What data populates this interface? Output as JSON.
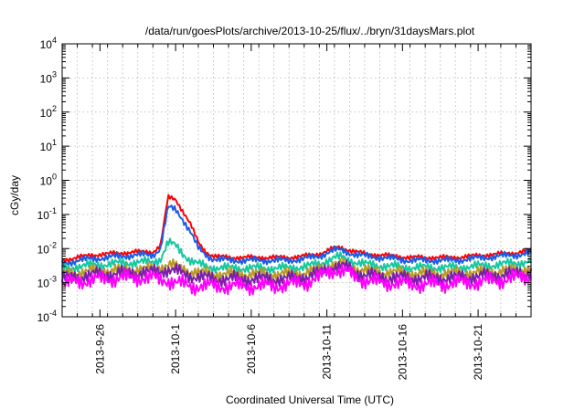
{
  "chart_data": {
    "type": "line",
    "title": "/data/run/goesPlots/archive/2013-10-25/flux/../bryn/31daysMars.plot",
    "xlabel": "Coordinated Universal Time (UTC)",
    "ylabel": "cGy/day",
    "yscale": "log",
    "ylim": [
      0.0001,
      10000
    ],
    "xlim": [
      0,
      31
    ],
    "grid": true,
    "x_ticks": [
      {
        "label": "2013-9-26",
        "day": 2.5
      },
      {
        "label": "2013-10-1",
        "day": 7.5
      },
      {
        "label": "2013-10-6",
        "day": 12.5
      },
      {
        "label": "2013-10-11",
        "day": 17.5
      },
      {
        "label": "2013-10-16",
        "day": 22.5
      },
      {
        "label": "2013-10-21",
        "day": 27.5
      }
    ],
    "y_ticks": [
      {
        "base": "10",
        "exp": "-4",
        "value": 0.0001
      },
      {
        "base": "10",
        "exp": "-3",
        "value": 0.001
      },
      {
        "base": "10",
        "exp": "-2",
        "value": 0.01
      },
      {
        "base": "10",
        "exp": "-1",
        "value": 0.1
      },
      {
        "base": "10",
        "exp": "0",
        "value": 1
      },
      {
        "base": "10",
        "exp": "1",
        "value": 10
      },
      {
        "base": "10",
        "exp": "2",
        "value": 100
      },
      {
        "base": "10",
        "exp": "3",
        "value": 1000
      },
      {
        "base": "10",
        "exp": "4",
        "value": 10000
      }
    ],
    "x": [
      0,
      1,
      2,
      3,
      4,
      5,
      6,
      6.5,
      7,
      7.5,
      8,
      8.5,
      9,
      9.5,
      10,
      11,
      12,
      13,
      14,
      15,
      16,
      17,
      17.5,
      18,
      18.5,
      19,
      19.5,
      20,
      21,
      22,
      23,
      24,
      25,
      26,
      27,
      28,
      29,
      30,
      31
    ],
    "series": [
      {
        "name": "red",
        "color": "#ff0000",
        "values": [
          0.0045,
          0.0055,
          0.0065,
          0.007,
          0.0075,
          0.008,
          0.008,
          0.012,
          0.32,
          0.28,
          0.12,
          0.05,
          0.015,
          0.008,
          0.006,
          0.0055,
          0.0055,
          0.0055,
          0.0055,
          0.0055,
          0.006,
          0.007,
          0.0085,
          0.0105,
          0.0105,
          0.009,
          0.008,
          0.007,
          0.0065,
          0.006,
          0.0055,
          0.0055,
          0.0055,
          0.0055,
          0.006,
          0.0065,
          0.007,
          0.0075,
          0.009
        ]
      },
      {
        "name": "blue",
        "color": "#1a5ce6",
        "values": [
          0.0035,
          0.0045,
          0.005,
          0.0055,
          0.006,
          0.0065,
          0.0065,
          0.01,
          0.16,
          0.14,
          0.07,
          0.03,
          0.01,
          0.0065,
          0.005,
          0.0045,
          0.0045,
          0.0045,
          0.0045,
          0.0045,
          0.005,
          0.006,
          0.0075,
          0.009,
          0.009,
          0.0075,
          0.0065,
          0.006,
          0.0055,
          0.005,
          0.0045,
          0.0045,
          0.0045,
          0.0045,
          0.005,
          0.0055,
          0.006,
          0.0065,
          0.0075
        ]
      },
      {
        "name": "teal",
        "color": "#14c8a0",
        "values": [
          0.0025,
          0.003,
          0.0033,
          0.0035,
          0.0038,
          0.004,
          0.004,
          0.005,
          0.015,
          0.012,
          0.007,
          0.0045,
          0.0035,
          0.003,
          0.0028,
          0.0027,
          0.0027,
          0.0027,
          0.0027,
          0.0027,
          0.003,
          0.0035,
          0.0045,
          0.0055,
          0.0055,
          0.0045,
          0.004,
          0.0035,
          0.0032,
          0.003,
          0.0028,
          0.0028,
          0.0028,
          0.0028,
          0.003,
          0.0032,
          0.0035,
          0.0038,
          0.0042
        ]
      },
      {
        "name": "olive",
        "color": "#b89a2a",
        "values": [
          0.0018,
          0.002,
          0.0022,
          0.0023,
          0.0024,
          0.0025,
          0.0025,
          0.0028,
          0.0035,
          0.003,
          0.0025,
          0.0022,
          0.002,
          0.0019,
          0.0018,
          0.0018,
          0.0018,
          0.0018,
          0.0018,
          0.0018,
          0.002,
          0.0024,
          0.003,
          0.0035,
          0.0035,
          0.003,
          0.0026,
          0.0023,
          0.0021,
          0.002,
          0.0019,
          0.0019,
          0.0019,
          0.0019,
          0.002,
          0.0021,
          0.0022,
          0.0024,
          0.0026
        ]
      },
      {
        "name": "purple",
        "color": "#7a1fa8",
        "values": [
          0.0013,
          0.0015,
          0.0017,
          0.0018,
          0.0019,
          0.002,
          0.002,
          0.0022,
          0.0025,
          0.0022,
          0.0018,
          0.0016,
          0.0015,
          0.0014,
          0.0013,
          0.0013,
          0.0013,
          0.0013,
          0.0013,
          0.0013,
          0.0015,
          0.0019,
          0.0025,
          0.003,
          0.003,
          0.0025,
          0.002,
          0.0017,
          0.0015,
          0.0014,
          0.0014,
          0.0014,
          0.0014,
          0.0014,
          0.0015,
          0.0016,
          0.0017,
          0.0019,
          0.002
        ]
      },
      {
        "name": "magenta",
        "color": "#ff00ff",
        "values": [
          0.0009,
          0.0011,
          0.0012,
          0.0013,
          0.0014,
          0.0014,
          0.0014,
          0.0012,
          0.0012,
          0.001,
          0.0009,
          0.0008,
          0.0008,
          0.0008,
          0.0008,
          0.0008,
          0.0008,
          0.0008,
          0.0008,
          0.0009,
          0.001,
          0.0014,
          0.002,
          0.0024,
          0.0022,
          0.0018,
          0.0014,
          0.0012,
          0.001,
          0.001,
          0.0009,
          0.0009,
          0.0009,
          0.001,
          0.001,
          0.0011,
          0.0012,
          0.0014,
          0.0015
        ]
      }
    ]
  }
}
